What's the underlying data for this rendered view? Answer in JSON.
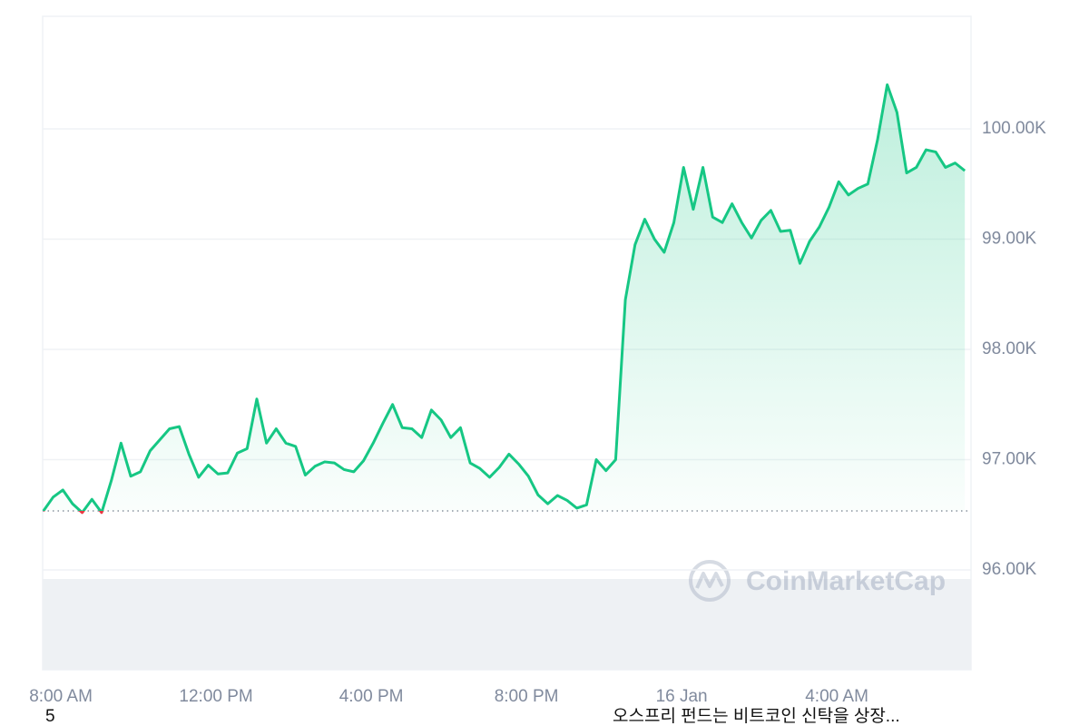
{
  "chart_data": {
    "type": "line",
    "x": [
      7.55,
      7.8,
      8.05,
      8.3,
      8.55,
      8.8,
      9.05,
      9.3,
      9.55,
      9.8,
      10.05,
      10.3,
      10.55,
      10.8,
      11.05,
      11.3,
      11.55,
      11.8,
      12.05,
      12.3,
      12.55,
      12.8,
      13.05,
      13.3,
      13.55,
      13.8,
      14.05,
      14.3,
      14.55,
      14.8,
      15.05,
      15.3,
      15.55,
      15.8,
      16.05,
      16.3,
      16.55,
      16.8,
      17.05,
      17.3,
      17.55,
      17.8,
      18.05,
      18.3,
      18.55,
      18.8,
      19.05,
      19.3,
      19.55,
      19.8,
      20.05,
      20.3,
      20.55,
      20.8,
      21.05,
      21.3,
      21.55,
      21.8,
      22.05,
      22.3,
      22.55,
      22.8,
      23.05,
      23.3,
      23.55,
      23.8,
      24.05,
      24.3,
      24.55,
      24.8,
      25.05,
      25.3,
      25.55,
      25.8,
      26.05,
      26.3,
      26.55,
      26.8,
      27.05,
      27.3,
      27.55,
      27.8,
      28.05,
      28.3,
      28.55,
      28.8,
      29.05,
      29.3,
      29.55,
      29.8,
      30.05,
      30.3,
      30.55,
      30.8,
      31.05,
      31.3
    ],
    "values": [
      96535,
      96660,
      96725,
      96600,
      96520,
      96640,
      96520,
      96810,
      97150,
      96850,
      96890,
      97080,
      97180,
      97280,
      97300,
      97050,
      96840,
      96950,
      96870,
      96880,
      97060,
      97100,
      97550,
      97150,
      97280,
      97150,
      97120,
      96860,
      96940,
      96980,
      96970,
      96910,
      96890,
      96990,
      97150,
      97330,
      97500,
      97290,
      97280,
      97200,
      97450,
      97360,
      97200,
      97290,
      96970,
      96920,
      96840,
      96930,
      97050,
      96960,
      96850,
      96680,
      96600,
      96675,
      96630,
      96560,
      96590,
      97000,
      96900,
      97000,
      98450,
      98950,
      99180,
      99000,
      98880,
      99150,
      99650,
      99270,
      99650,
      99200,
      99150,
      99320,
      99150,
      99010,
      99170,
      99260,
      99070,
      99080,
      98780,
      98980,
      99110,
      99290,
      99520,
      99400,
      99460,
      99500,
      99900,
      100400,
      100150,
      99600,
      99650,
      99810,
      99790,
      99650,
      99690,
      99620
    ],
    "color": "#16c784",
    "down_color": "#ea3943",
    "xlim": [
      7.53,
      31.46
    ],
    "xticks": [
      {
        "value": 8,
        "label": "8:00 AM"
      },
      {
        "value": 12,
        "label": "12:00 PM"
      },
      {
        "value": 16,
        "label": "4:00 PM"
      },
      {
        "value": 20,
        "label": "8:00 PM"
      },
      {
        "value": 24,
        "label": "16 Jan"
      },
      {
        "value": 28,
        "label": "4:00 AM"
      }
    ],
    "ylim": [
      95095,
      101020
    ],
    "yticks": [
      {
        "value": 96000,
        "label": "96.00K"
      },
      {
        "value": 97000,
        "label": "97.00K"
      },
      {
        "value": 98000,
        "label": "98.00K"
      },
      {
        "value": 99000,
        "label": "99.00K"
      },
      {
        "value": 100000,
        "label": "100.00K"
      }
    ],
    "grid": true,
    "watermark": "CoinMarketCap"
  },
  "footer": {
    "index": "5",
    "ticker": "오스프리 펀드는 비트코인 신탁을 상장..."
  }
}
